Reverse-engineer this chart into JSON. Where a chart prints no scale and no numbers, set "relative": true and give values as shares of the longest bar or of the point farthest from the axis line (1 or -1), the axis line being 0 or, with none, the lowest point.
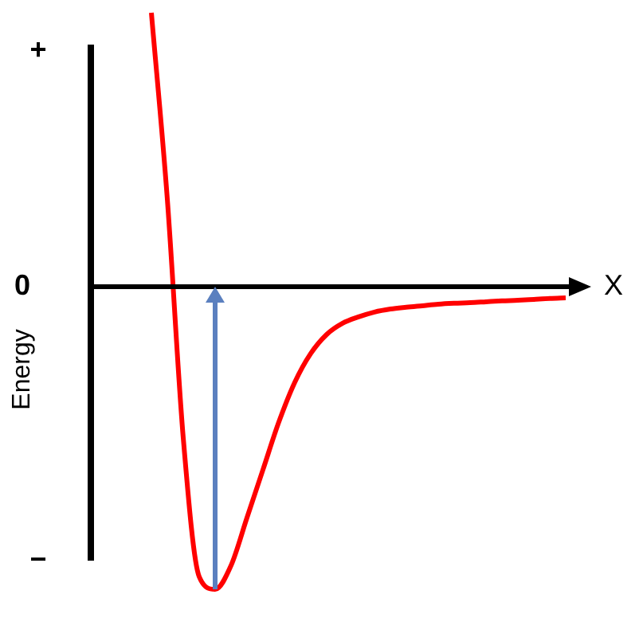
{
  "chart_data": {
    "type": "line",
    "relative": true,
    "xlabel": "X",
    "ylabel": "Energy",
    "categories": [
      null,
      null,
      null,
      null,
      null,
      null,
      null,
      null,
      null,
      null,
      null,
      null,
      null,
      null,
      null,
      null,
      null,
      null,
      null,
      null,
      null,
      null,
      null,
      null,
      null,
      null,
      null
    ],
    "series": [
      {
        "color": "#ff0000",
        "values": [
          0.905,
          0.289,
          -0.5,
          -0.958,
          -1,
          -0.921,
          -0.763,
          -0.605,
          -0.447,
          -0.316,
          -0.221,
          -0.158,
          -0.121,
          -0.1,
          -0.084,
          -0.074,
          -0.068,
          -0.063,
          -0.058,
          -0.055,
          -0.053,
          -0.05,
          -0.047,
          -0.045,
          -0.042,
          -0.039,
          -0.037
        ]
      }
    ],
    "annotations": [
      "+",
      "0",
      "−"
    ],
    "marker": "none",
    "legend": false
  }
}
